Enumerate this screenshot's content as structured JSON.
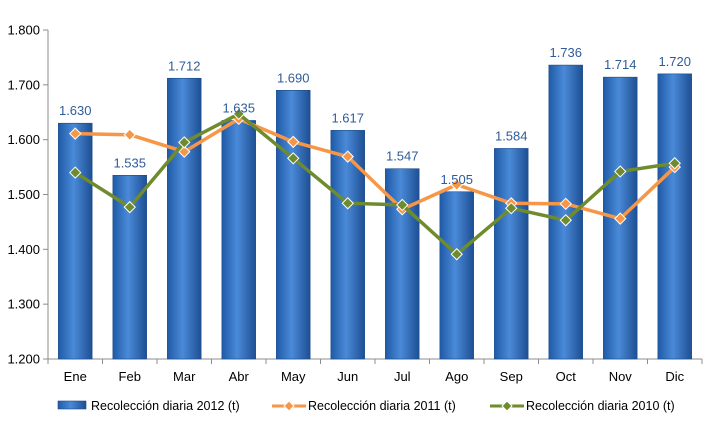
{
  "chart_data": {
    "type": "bar",
    "categories": [
      "Ene",
      "Feb",
      "Mar",
      "Abr",
      "May",
      "Jun",
      "Jul",
      "Ago",
      "Sep",
      "Oct",
      "Nov",
      "Dic"
    ],
    "ylim": [
      1200,
      1800
    ],
    "yticks": [
      1200,
      1300,
      1400,
      1500,
      1600,
      1700,
      1800
    ],
    "ytick_labels": [
      "1.200",
      "1.300",
      "1.400",
      "1.500",
      "1.600",
      "1.700",
      "1.800"
    ],
    "grid": false,
    "legend_position": "bottom",
    "series": [
      {
        "name": "Recolección diaria  2012 (t)",
        "type": "bar",
        "color": "#2E6DB5",
        "values": [
          1630,
          1535,
          1712,
          1635,
          1690,
          1617,
          1547,
          1505,
          1584,
          1736,
          1714,
          1720
        ],
        "data_labels": [
          "1.630",
          "1.535",
          "1.712",
          "1.635",
          "1.690",
          "1.617",
          "1.547",
          "1.505",
          "1.584",
          "1.736",
          "1.714",
          "1.720"
        ],
        "label_color": "#2E5C99"
      },
      {
        "name": "Recolección diaria  2011 (t)",
        "type": "line",
        "color": "#F79646",
        "marker": "diamond",
        "values": [
          1611,
          1609,
          1578,
          1638,
          1596,
          1569,
          1473,
          1518,
          1484,
          1483,
          1456,
          1550
        ]
      },
      {
        "name": "Recolección diaria  2010 (t)",
        "type": "line",
        "color": "#6E8B2E",
        "marker": "diamond",
        "values": [
          1540,
          1477,
          1595,
          1647,
          1566,
          1484,
          1481,
          1391,
          1475,
          1453,
          1542,
          1557
        ]
      }
    ]
  }
}
